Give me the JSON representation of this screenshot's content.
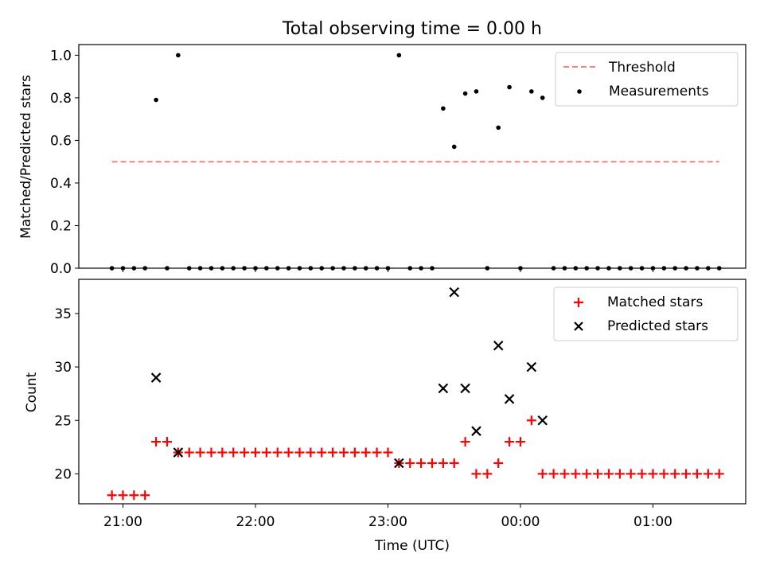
{
  "title": "Total observing time = 0.00 h",
  "chart_data": [
    {
      "type": "scatter",
      "ylabel": "Matched/Predicted stars",
      "ylim": [
        0,
        1.05
      ],
      "yticks": [
        0.0,
        0.2,
        0.4,
        0.6,
        0.8,
        1.0
      ],
      "ytick_labels": [
        "0.0",
        "0.2",
        "0.4",
        "0.6",
        "0.8",
        "1.0"
      ],
      "legend_position": "top-right",
      "threshold": {
        "name": "Threshold",
        "value": 0.5,
        "x_start": "20:55",
        "x_end": "01:30",
        "color": "#ff7f7f"
      },
      "series": [
        {
          "name": "Measurements",
          "color": "#000000",
          "points": [
            [
              "20:55",
              0
            ],
            [
              "21:00",
              0
            ],
            [
              "21:05",
              0
            ],
            [
              "21:10",
              0
            ],
            [
              "21:15",
              0.79
            ],
            [
              "21:20",
              0
            ],
            [
              "21:25",
              1.0
            ],
            [
              "21:30",
              0
            ],
            [
              "21:35",
              0
            ],
            [
              "21:40",
              0
            ],
            [
              "21:45",
              0
            ],
            [
              "21:50",
              0
            ],
            [
              "21:55",
              0
            ],
            [
              "22:00",
              0
            ],
            [
              "22:05",
              0
            ],
            [
              "22:10",
              0
            ],
            [
              "22:15",
              0
            ],
            [
              "22:20",
              0
            ],
            [
              "22:25",
              0
            ],
            [
              "22:30",
              0
            ],
            [
              "22:35",
              0
            ],
            [
              "22:40",
              0
            ],
            [
              "22:45",
              0
            ],
            [
              "22:50",
              0
            ],
            [
              "22:55",
              0
            ],
            [
              "23:00",
              0
            ],
            [
              "23:05",
              1.0
            ],
            [
              "23:10",
              0
            ],
            [
              "23:15",
              0
            ],
            [
              "23:20",
              0
            ],
            [
              "23:25",
              0.75
            ],
            [
              "23:30",
              0.57
            ],
            [
              "23:35",
              0.82
            ],
            [
              "23:40",
              0.83
            ],
            [
              "23:45",
              0
            ],
            [
              "23:50",
              0.66
            ],
            [
              "23:55",
              0.85
            ],
            [
              "00:00",
              0
            ],
            [
              "00:05",
              0.83
            ],
            [
              "00:10",
              0.8
            ],
            [
              "00:15",
              0
            ],
            [
              "00:20",
              0
            ],
            [
              "00:25",
              0
            ],
            [
              "00:30",
              0
            ],
            [
              "00:35",
              0
            ],
            [
              "00:40",
              0
            ],
            [
              "00:45",
              0
            ],
            [
              "00:50",
              0
            ],
            [
              "00:55",
              0
            ],
            [
              "01:00",
              0
            ],
            [
              "01:05",
              0
            ],
            [
              "01:10",
              0
            ],
            [
              "01:15",
              0
            ],
            [
              "01:20",
              0
            ],
            [
              "01:25",
              0
            ],
            [
              "01:30",
              0
            ]
          ]
        }
      ]
    },
    {
      "type": "scatter",
      "xlabel": "Time (UTC)",
      "ylabel": "Count",
      "ylim": [
        17.2,
        38.2
      ],
      "yticks": [
        20,
        25,
        30,
        35
      ],
      "ytick_labels": [
        "20",
        "25",
        "30",
        "35"
      ],
      "xticks": [
        "21:00",
        "22:00",
        "23:00",
        "00:00",
        "01:00"
      ],
      "xlim": [
        "20:40",
        "01:42"
      ],
      "legend_position": "top-right",
      "series": [
        {
          "name": "Matched stars",
          "marker": "+",
          "color": "#ff0000",
          "points": [
            [
              "20:55",
              18
            ],
            [
              "21:00",
              18
            ],
            [
              "21:05",
              18
            ],
            [
              "21:10",
              18
            ],
            [
              "21:15",
              23
            ],
            [
              "21:20",
              23
            ],
            [
              "21:25",
              22
            ],
            [
              "21:30",
              22
            ],
            [
              "21:35",
              22
            ],
            [
              "21:40",
              22
            ],
            [
              "21:45",
              22
            ],
            [
              "21:50",
              22
            ],
            [
              "21:55",
              22
            ],
            [
              "22:00",
              22
            ],
            [
              "22:05",
              22
            ],
            [
              "22:10",
              22
            ],
            [
              "22:15",
              22
            ],
            [
              "22:20",
              22
            ],
            [
              "22:25",
              22
            ],
            [
              "22:30",
              22
            ],
            [
              "22:35",
              22
            ],
            [
              "22:40",
              22
            ],
            [
              "22:45",
              22
            ],
            [
              "22:50",
              22
            ],
            [
              "22:55",
              22
            ],
            [
              "23:00",
              22
            ],
            [
              "23:05",
              21
            ],
            [
              "23:10",
              21
            ],
            [
              "23:15",
              21
            ],
            [
              "23:20",
              21
            ],
            [
              "23:25",
              21
            ],
            [
              "23:30",
              21
            ],
            [
              "23:35",
              23
            ],
            [
              "23:40",
              20
            ],
            [
              "23:45",
              20
            ],
            [
              "23:50",
              21
            ],
            [
              "23:55",
              23
            ],
            [
              "00:00",
              23
            ],
            [
              "00:05",
              25
            ],
            [
              "00:10",
              20
            ],
            [
              "00:15",
              20
            ],
            [
              "00:20",
              20
            ],
            [
              "00:25",
              20
            ],
            [
              "00:30",
              20
            ],
            [
              "00:35",
              20
            ],
            [
              "00:40",
              20
            ],
            [
              "00:45",
              20
            ],
            [
              "00:50",
              20
            ],
            [
              "00:55",
              20
            ],
            [
              "01:00",
              20
            ],
            [
              "01:05",
              20
            ],
            [
              "01:10",
              20
            ],
            [
              "01:15",
              20
            ],
            [
              "01:20",
              20
            ],
            [
              "01:25",
              20
            ],
            [
              "01:30",
              20
            ]
          ]
        },
        {
          "name": "Predicted stars",
          "marker": "x",
          "color": "#000000",
          "points": [
            [
              "21:15",
              29
            ],
            [
              "21:25",
              22
            ],
            [
              "23:05",
              21
            ],
            [
              "23:25",
              28
            ],
            [
              "23:30",
              37
            ],
            [
              "23:35",
              28
            ],
            [
              "23:40",
              24
            ],
            [
              "23:50",
              32
            ],
            [
              "23:55",
              27
            ],
            [
              "00:05",
              30
            ],
            [
              "00:10",
              25
            ]
          ]
        }
      ]
    }
  ]
}
